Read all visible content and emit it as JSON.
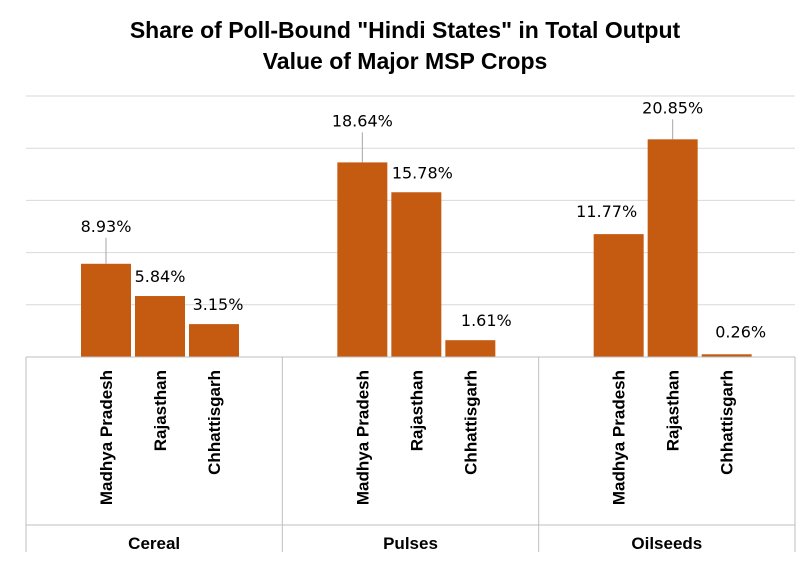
{
  "chart_data": {
    "type": "bar",
    "title": "Share of Poll-Bound \"Hindi States\" in Total Output Value of Major MSP Crops",
    "title_lines": [
      "Share of Poll-Bound \"Hindi States\" in Total Output",
      "Value of Major MSP Crops"
    ],
    "ylim": [
      0,
      25
    ],
    "grid": true,
    "bar_color": "#c55a11",
    "grid_color": "#d9d9d9",
    "groups": [
      {
        "name": "Cereal",
        "categories": [
          "Madhya Pradesh",
          "Rajasthan",
          "Chhattisgarh"
        ],
        "values": [
          8.93,
          5.84,
          3.15
        ],
        "labels": [
          "8.93%",
          "5.84%",
          "3.15%"
        ]
      },
      {
        "name": "Pulses",
        "categories": [
          "Madhya Pradesh",
          "Rajasthan",
          "Chhattisgarh"
        ],
        "values": [
          18.64,
          15.78,
          1.61
        ],
        "labels": [
          "18.64%",
          "15.78%",
          "1.61%"
        ]
      },
      {
        "name": "Oilseeds",
        "categories": [
          "Madhya Pradesh",
          "Rajasthan",
          "Chhattisgarh"
        ],
        "values": [
          11.77,
          20.85,
          0.26
        ],
        "labels": [
          "11.77%",
          "20.85%",
          "0.26%"
        ]
      }
    ]
  }
}
